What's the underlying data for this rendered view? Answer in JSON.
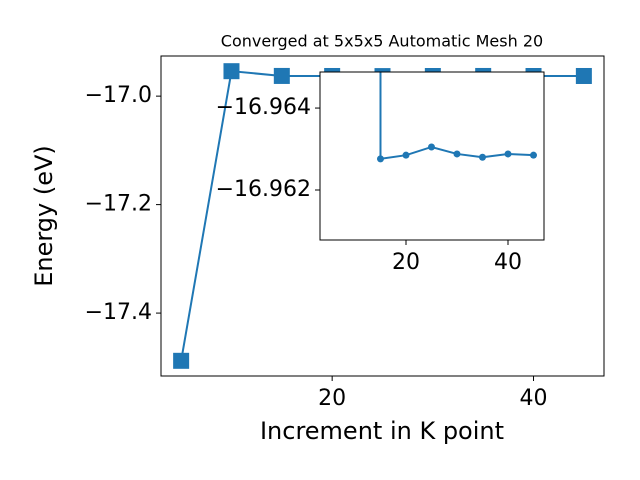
{
  "chart_data": [
    {
      "type": "line",
      "title": "Converged at 5x5x5 Automatic Mesh 20",
      "xlabel": "Increment in K point",
      "ylabel": "Energy (eV)",
      "x": [
        5,
        10,
        15,
        20,
        25,
        30,
        35,
        40,
        45
      ],
      "values": [
        -17.488,
        -16.954,
        -16.96276,
        -16.96285,
        -16.96305,
        -16.96288,
        -16.9628,
        -16.96288,
        -16.96285
      ],
      "color": "#1f77b4",
      "marker": "square",
      "xlim": [
        3,
        47
      ],
      "xticks": [
        20,
        40
      ],
      "ylim": [
        -17.516,
        -16.926
      ],
      "yticks": [
        {
          "value": -17.4,
          "label": "−17.4"
        },
        {
          "value": -17.2,
          "label": "−17.2"
        },
        {
          "value": -17.0,
          "label": "−17.0"
        }
      ]
    },
    {
      "type": "line",
      "x": [
        15,
        20,
        25,
        30,
        35,
        40,
        45
      ],
      "values": [
        -16.96276,
        -16.96285,
        -16.96305,
        -16.96288,
        -16.9628,
        -16.96288,
        -16.96285
      ],
      "color": "#1f77b4",
      "marker": "circle",
      "xlim": [
        3.14,
        47.06
      ],
      "xticks": [
        20,
        40
      ],
      "ylim": [
        -16.96078,
        -16.96488
      ],
      "yticks": [
        {
          "value": -16.964,
          "label": "−16.964"
        },
        {
          "value": -16.962,
          "label": "−16.962"
        }
      ]
    }
  ]
}
